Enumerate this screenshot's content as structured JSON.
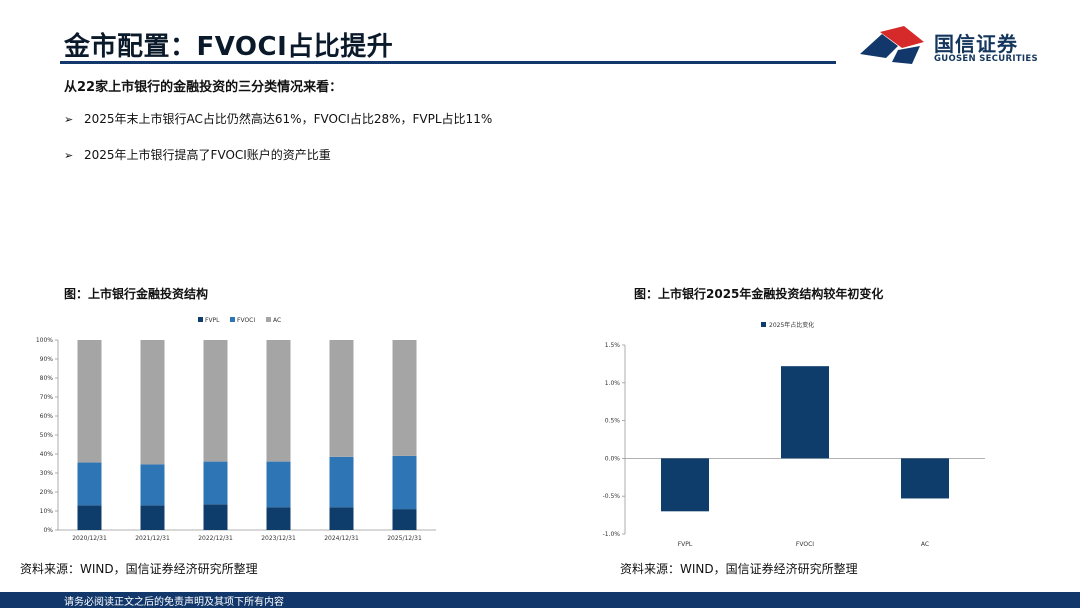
{
  "header": {
    "title": "金市配置：FVOCI占比提升",
    "logo_cn": "国信证券",
    "logo_en": "GUOSEN SECURITIES"
  },
  "intro": "从22家上市银行的金融投资的三分类情况来看：",
  "bullets": [
    "2025年末上市银行AC占比仍然高达61%，FVOCI占比28%，FVPL占比11%",
    "2025年上市银行提高了FVOCI账户的资产比重"
  ],
  "bullet_marker": "➢",
  "figures": {
    "left_title": "图：上市银行金融投资结构",
    "right_title": "图：上市银行2025年金融投资结构较年初变化",
    "left_source": "资料来源：WIND，国信证券经济研究所整理",
    "right_source": "资料来源：WIND，国信证券经济研究所整理"
  },
  "footer": {
    "disclaimer": "请务必阅读正文之后的免责声明及其项下所有内容"
  },
  "colors": {
    "navy": "#12386b",
    "fvpl": "#0f3d6b",
    "fvoci": "#2e75b6",
    "ac": "#a5a5a5",
    "logo_red": "#d62a2a"
  },
  "chart_data": [
    {
      "type": "bar",
      "stacked": true,
      "categories": [
        "2020/12/31",
        "2021/12/31",
        "2022/12/31",
        "2023/12/31",
        "2024/12/31",
        "2025/12/31"
      ],
      "series": [
        {
          "name": "FVPL",
          "values": [
            13,
            13,
            13.5,
            12,
            12,
            11
          ]
        },
        {
          "name": "FVOCI",
          "values": [
            22.5,
            21.5,
            22.5,
            24,
            26.5,
            28
          ]
        },
        {
          "name": "AC",
          "values": [
            64.5,
            65.5,
            64,
            64,
            61.5,
            61
          ]
        }
      ],
      "yticks": [
        "0%",
        "10%",
        "20%",
        "30%",
        "40%",
        "50%",
        "60%",
        "70%",
        "80%",
        "90%",
        "100%"
      ],
      "ylim": [
        0,
        100
      ],
      "legend": "top-center",
      "title": "",
      "xlabel": "",
      "ylabel": ""
    },
    {
      "type": "bar",
      "categories": [
        "FVPL",
        "FVOCI",
        "AC"
      ],
      "series": [
        {
          "name": "2025年占比变化",
          "values": [
            -0.7,
            1.22,
            -0.53
          ]
        }
      ],
      "yticks": [
        "-1.0%",
        "-0.5%",
        "0.0%",
        "0.5%",
        "1.0%",
        "1.5%"
      ],
      "ylim": [
        -1.0,
        1.5
      ],
      "legend": "top-center",
      "title": "",
      "xlabel": "",
      "ylabel": ""
    }
  ]
}
